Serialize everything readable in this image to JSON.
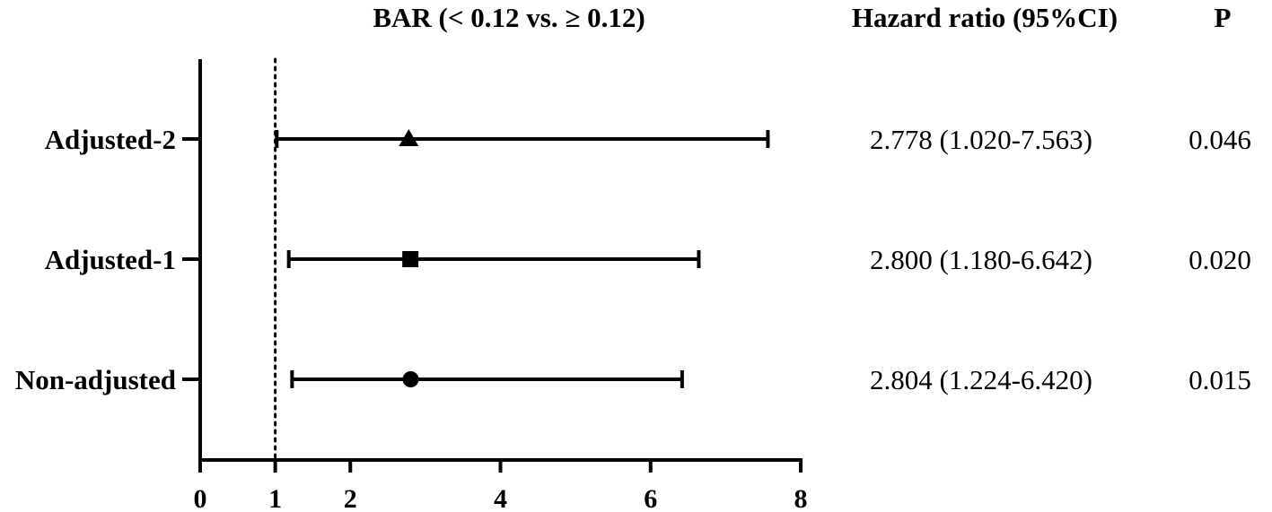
{
  "chart_data": {
    "type": "forest",
    "title": "BAR (< 0.12 vs. ≥ 0.12)",
    "column_headers": {
      "hr": "Hazard ratio (95%CI)",
      "p": "P"
    },
    "xlim": [
      0,
      8
    ],
    "x_ticks": [
      0,
      1,
      2,
      4,
      6,
      8
    ],
    "reference_line": 1,
    "rows": [
      {
        "label": "Adjusted-2",
        "hr": 2.778,
        "lower": 1.02,
        "upper": 7.563,
        "marker": "triangle",
        "hr_text": "2.778 (1.020-7.563)",
        "p_text": "0.046"
      },
      {
        "label": "Adjusted-1",
        "hr": 2.8,
        "lower": 1.18,
        "upper": 6.642,
        "marker": "square",
        "hr_text": "2.800 (1.180-6.642)",
        "p_text": "0.020"
      },
      {
        "label": "Non-adjusted",
        "hr": 2.804,
        "lower": 1.224,
        "upper": 6.42,
        "marker": "circle",
        "hr_text": "2.804 (1.224-6.420)",
        "p_text": "0.015"
      }
    ]
  }
}
